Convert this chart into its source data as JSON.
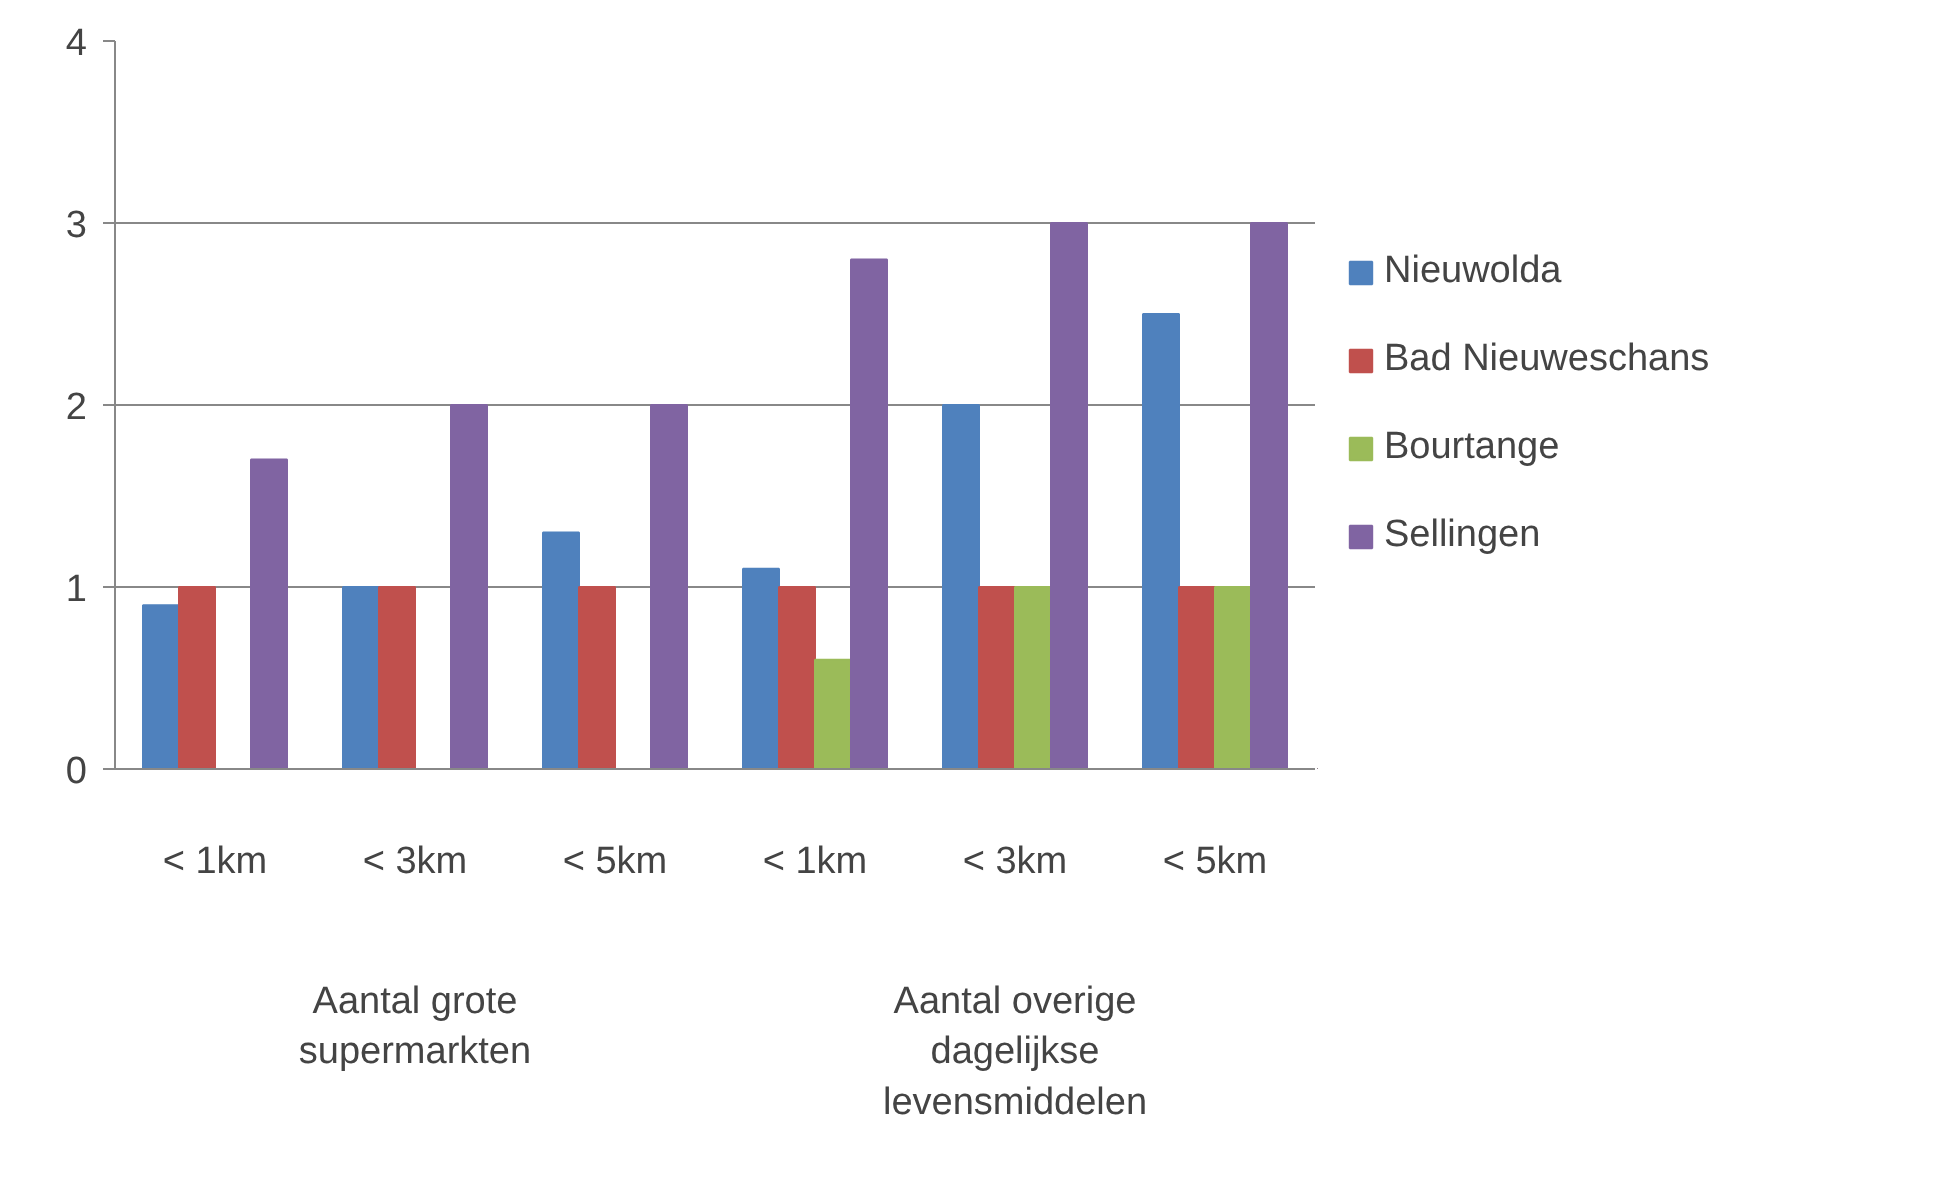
{
  "chart_data": {
    "type": "bar",
    "categories": [
      "< 1km",
      "< 3km",
      "< 5km",
      "< 1km",
      "< 3km",
      "< 5km"
    ],
    "annotations": [
      "Aantal grote supermarkten",
      "Aantal overige dagelijkse levensmiddelen"
    ],
    "series": [
      {
        "name": "Nieuwolda",
        "color": "#4f81bd",
        "values": [
          0.9,
          1,
          1.3,
          1.1,
          2,
          2.5
        ]
      },
      {
        "name": "Bad Nieuweschans",
        "color": "#c0504d",
        "values": [
          1,
          1,
          1,
          1,
          1,
          1
        ]
      },
      {
        "name": "Bourtange",
        "color": "#9bbb59",
        "values": [
          null,
          null,
          null,
          0.6,
          1,
          1
        ]
      },
      {
        "name": "Sellingen",
        "color": "#8064a2",
        "values": [
          1.7,
          2,
          2,
          2.8,
          3,
          3
        ]
      }
    ],
    "ylim": [
      0,
      4
    ],
    "yticks": [
      0,
      1,
      2,
      3,
      4
    ],
    "grid": "y",
    "legend": "right"
  }
}
